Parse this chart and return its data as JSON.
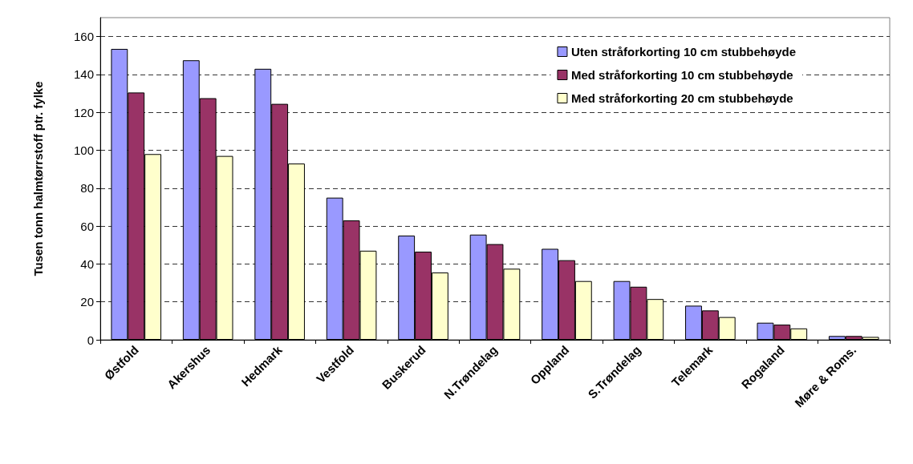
{
  "chart_data": {
    "type": "bar",
    "ylabel": "Tusen tonn halmtørrstoff ptr. fylke",
    "categories": [
      "Østfold",
      "Akershus",
      "Hedmark",
      "Vestfold",
      "Buskerud",
      "N.Trøndelag",
      "Oppland",
      "S.Trøndelag",
      "Telemark",
      "Rogaland",
      "Møre & Roms."
    ],
    "series": [
      {
        "name": "Uten stråforkorting 10 cm stubbehøyde",
        "color": "#9999ff",
        "values": [
          153.5,
          147.5,
          143,
          75,
          55,
          55.5,
          48,
          31,
          18,
          9,
          2
        ]
      },
      {
        "name": "Med stråforkorting 10 cm stubbehøyde",
        "color": "#993366",
        "values": [
          130.5,
          127.5,
          124.5,
          63,
          46.5,
          50.5,
          42,
          28,
          15.5,
          8,
          2
        ]
      },
      {
        "name": "Med stråforkorting 20 cm stubbehøyde",
        "color": "#ffffcc",
        "values": [
          98,
          97,
          93,
          47,
          35.5,
          37.5,
          31,
          21.5,
          12,
          6,
          1.5
        ]
      }
    ],
    "ylim": [
      0,
      170
    ],
    "yticks": [
      0,
      20,
      40,
      60,
      80,
      100,
      120,
      140,
      160
    ],
    "grid": "y",
    "legend": "top right"
  }
}
